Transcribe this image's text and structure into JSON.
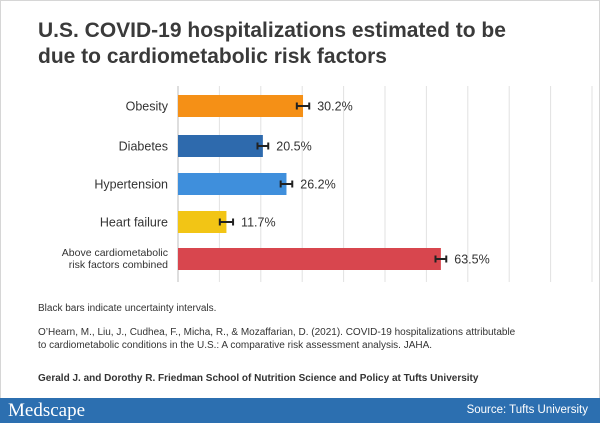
{
  "title_lines": [
    "U.S. COVID-19 hospitalizations estimated to be",
    "due to cardiometabolic risk factors"
  ],
  "chart_data": {
    "type": "bar",
    "orientation": "horizontal",
    "categories": [
      [
        "Obesity"
      ],
      [
        "Diabetes"
      ],
      [
        "Hypertension"
      ],
      [
        "Heart failure"
      ],
      [
        "Above cardiometabolic",
        "risk factors combined"
      ]
    ],
    "values": [
      30.2,
      20.5,
      26.2,
      11.7,
      63.5
    ],
    "value_labels": [
      "30.2%",
      "20.5%",
      "26.2%",
      "11.7%",
      "63.5%"
    ],
    "error_margin": [
      1.5,
      1.3,
      1.4,
      1.6,
      1.3
    ],
    "colors": [
      "#f59016",
      "#2e6aad",
      "#3f8fdc",
      "#f2c515",
      "#d8464e"
    ],
    "xlim": [
      0,
      100
    ],
    "grid": true
  },
  "note": "Black bars indicate uncertainty intervals.",
  "citation_lines": [
    "O’Hearn, M., Liu, J., Cudhea, F., Micha, R., & Mozaffarian, D. (2021). COVID-19 hospitalizations attributable",
    "to cardiometabolic conditions in the U.S.: A comparative risk assessment analysis. JAHA."
  ],
  "institution": "Gerald J. and Dorothy R. Friedman School of Nutrition Science and Policy at Tufts University",
  "footer": {
    "logo": "Medscape",
    "source": "Source: Tufts University"
  }
}
